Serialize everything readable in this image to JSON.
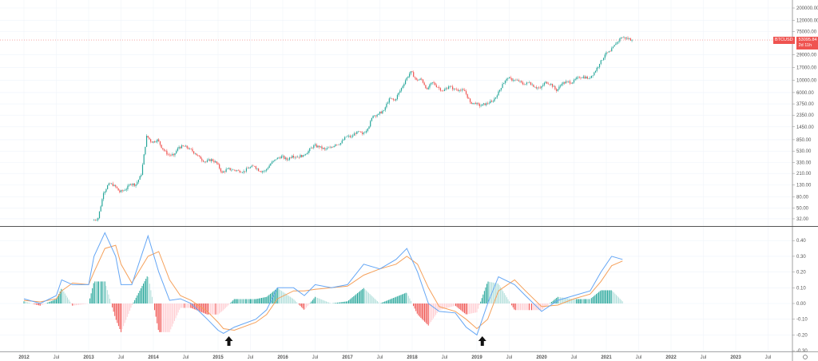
{
  "symbol_label": "BTCUSD",
  "last_price": "53095.84",
  "countdown": "2d 11h",
  "colors": {
    "up": "#26a69a",
    "down": "#ef5350",
    "macd": "#64a6f5",
    "signal": "#f5a05a",
    "hist_up_strong": "#26a69a",
    "hist_up_weak": "#b2dfdb",
    "hist_down_strong": "#ef5350",
    "hist_down_weak": "#ffcdd2",
    "price_label": "#ef5350"
  },
  "annotations": [
    {
      "type": "arrow-up",
      "date": "2015-03"
    },
    {
      "type": "arrow-up",
      "date": "2019-02"
    }
  ],
  "x_axis": {
    "ticks": [
      {
        "label": "2012",
        "date": "2012-01"
      },
      {
        "label": "Jul",
        "date": "2012-07"
      },
      {
        "label": "2013",
        "date": "2013-01"
      },
      {
        "label": "Jul",
        "date": "2013-07"
      },
      {
        "label": "2014",
        "date": "2014-01"
      },
      {
        "label": "Jul",
        "date": "2014-07"
      },
      {
        "label": "2015",
        "date": "2015-01"
      },
      {
        "label": "Jul",
        "date": "2015-07"
      },
      {
        "label": "2016",
        "date": "2016-01"
      },
      {
        "label": "Jul",
        "date": "2016-07"
      },
      {
        "label": "2017",
        "date": "2017-01"
      },
      {
        "label": "Jul",
        "date": "2017-07"
      },
      {
        "label": "2018",
        "date": "2018-01"
      },
      {
        "label": "Jul",
        "date": "2018-07"
      },
      {
        "label": "2019",
        "date": "2019-01"
      },
      {
        "label": "Jul",
        "date": "2019-07"
      },
      {
        "label": "2020",
        "date": "2020-01"
      },
      {
        "label": "Jul",
        "date": "2020-07"
      },
      {
        "label": "2021",
        "date": "2021-01"
      },
      {
        "label": "Jul",
        "date": "2021-07"
      },
      {
        "label": "2022",
        "date": "2022-01"
      },
      {
        "label": "Jul",
        "date": "2022-07"
      },
      {
        "label": "2023",
        "date": "2023-01"
      },
      {
        "label": "Jul",
        "date": "2023-07"
      }
    ]
  },
  "chart_data": [
    {
      "type": "candlestick",
      "scale": "log",
      "grid": true,
      "ylim": [
        30,
        200000
      ],
      "y_ticks": [
        "200000.00",
        "120000.00",
        "75000.00",
        "29000.00",
        "17000.00",
        "10000.00",
        "6000.00",
        "3750.00",
        "2350.00",
        "1450.00",
        "850.00",
        "530.00",
        "330.00",
        "210.00",
        "130.00",
        "80.00",
        "50.00",
        "32.00"
      ],
      "monthly_close": [
        [
          "2013-02",
          33
        ],
        [
          "2013-03",
          93
        ],
        [
          "2013-04",
          139
        ],
        [
          "2013-05",
          129
        ],
        [
          "2013-06",
          97
        ],
        [
          "2013-07",
          106
        ],
        [
          "2013-08",
          135
        ],
        [
          "2013-09",
          133
        ],
        [
          "2013-10",
          198
        ],
        [
          "2013-11",
          1000
        ],
        [
          "2013-12",
          754
        ],
        [
          "2014-01",
          860
        ],
        [
          "2014-02",
          573
        ],
        [
          "2014-03",
          457
        ],
        [
          "2014-04",
          448
        ],
        [
          "2014-05",
          627
        ],
        [
          "2014-06",
          640
        ],
        [
          "2014-07",
          586
        ],
        [
          "2014-08",
          480
        ],
        [
          "2014-09",
          387
        ],
        [
          "2014-10",
          338
        ],
        [
          "2014-11",
          378
        ],
        [
          "2014-12",
          320
        ],
        [
          "2015-01",
          217
        ],
        [
          "2015-02",
          254
        ],
        [
          "2015-03",
          244
        ],
        [
          "2015-04",
          236
        ],
        [
          "2015-05",
          230
        ],
        [
          "2015-06",
          263
        ],
        [
          "2015-07",
          284
        ],
        [
          "2015-08",
          230
        ],
        [
          "2015-09",
          236
        ],
        [
          "2015-10",
          314
        ],
        [
          "2015-11",
          377
        ],
        [
          "2015-12",
          430
        ],
        [
          "2016-01",
          369
        ],
        [
          "2016-02",
          437
        ],
        [
          "2016-03",
          416
        ],
        [
          "2016-04",
          448
        ],
        [
          "2016-05",
          531
        ],
        [
          "2016-06",
          673
        ],
        [
          "2016-07",
          624
        ],
        [
          "2016-08",
          573
        ],
        [
          "2016-09",
          609
        ],
        [
          "2016-10",
          698
        ],
        [
          "2016-11",
          742
        ],
        [
          "2016-12",
          963
        ],
        [
          "2017-01",
          970
        ],
        [
          "2017-02",
          1190
        ],
        [
          "2017-03",
          1080
        ],
        [
          "2017-04",
          1348
        ],
        [
          "2017-05",
          2300
        ],
        [
          "2017-06",
          2480
        ],
        [
          "2017-07",
          2875
        ],
        [
          "2017-08",
          4700
        ],
        [
          "2017-09",
          4340
        ],
        [
          "2017-10",
          6470
        ],
        [
          "2017-11",
          10000
        ],
        [
          "2017-12",
          14500
        ],
        [
          "2018-01",
          10200
        ],
        [
          "2018-02",
          10300
        ],
        [
          "2018-03",
          6900
        ],
        [
          "2018-04",
          9200
        ],
        [
          "2018-05",
          7500
        ],
        [
          "2018-06",
          6400
        ],
        [
          "2018-07",
          7730
        ],
        [
          "2018-08",
          7030
        ],
        [
          "2018-09",
          6630
        ],
        [
          "2018-10",
          6370
        ],
        [
          "2018-11",
          4040
        ],
        [
          "2018-12",
          3740
        ],
        [
          "2019-01",
          3460
        ],
        [
          "2019-02",
          3850
        ],
        [
          "2019-03",
          4100
        ],
        [
          "2019-04",
          5320
        ],
        [
          "2019-05",
          8570
        ],
        [
          "2019-06",
          10800
        ],
        [
          "2019-07",
          10080
        ],
        [
          "2019-08",
          9600
        ],
        [
          "2019-09",
          8300
        ],
        [
          "2019-10",
          9150
        ],
        [
          "2019-11",
          7550
        ],
        [
          "2019-12",
          7190
        ],
        [
          "2020-01",
          9350
        ],
        [
          "2020-02",
          8600
        ],
        [
          "2020-03",
          6440
        ],
        [
          "2020-04",
          8630
        ],
        [
          "2020-05",
          9450
        ],
        [
          "2020-06",
          9140
        ],
        [
          "2020-07",
          11350
        ],
        [
          "2020-08",
          11650
        ],
        [
          "2020-09",
          10780
        ],
        [
          "2020-10",
          13800
        ],
        [
          "2020-11",
          19700
        ],
        [
          "2020-12",
          29000
        ],
        [
          "2021-01",
          33100
        ],
        [
          "2021-02",
          45200
        ],
        [
          "2021-03",
          58800
        ],
        [
          "2021-04",
          57700
        ],
        [
          "2021-05",
          53095.84
        ]
      ]
    },
    {
      "type": "line",
      "indicator": "MACD",
      "grid": true,
      "ylim": [
        -0.3,
        0.45
      ],
      "y_ticks": [
        "0.40",
        "0.30",
        "0.20",
        "0.10",
        "0.00",
        "-0.10",
        "-0.20",
        "-0.30"
      ],
      "dates": [
        "2012-01",
        "2012-04",
        "2012-07",
        "2012-08",
        "2012-10",
        "2013-01",
        "2013-02",
        "2013-04",
        "2013-06",
        "2013-07",
        "2013-09",
        "2013-12",
        "2014-02",
        "2014-04",
        "2014-06",
        "2014-08",
        "2014-11",
        "2015-01",
        "2015-02",
        "2015-04",
        "2015-08",
        "2015-10",
        "2015-12",
        "2016-03",
        "2016-05",
        "2016-07",
        "2016-10",
        "2017-01",
        "2017-04",
        "2017-07",
        "2017-10",
        "2017-12",
        "2018-02",
        "2018-04",
        "2018-06",
        "2018-09",
        "2018-11",
        "2019-01",
        "2019-03",
        "2019-05",
        "2019-08",
        "2019-10",
        "2020-01",
        "2020-04",
        "2020-07",
        "2020-10",
        "2020-12",
        "2021-02",
        "2021-04"
      ],
      "macd": [
        0.03,
        0.0,
        0.05,
        0.15,
        0.12,
        0.12,
        0.3,
        0.45,
        0.3,
        0.12,
        0.12,
        0.43,
        0.2,
        0.02,
        0.03,
        0.0,
        -0.1,
        -0.17,
        -0.19,
        -0.15,
        -0.1,
        -0.04,
        0.1,
        0.1,
        0.05,
        0.12,
        0.1,
        0.12,
        0.25,
        0.22,
        0.28,
        0.35,
        0.2,
        0.0,
        -0.05,
        -0.06,
        -0.15,
        -0.2,
        0.0,
        0.17,
        0.12,
        0.05,
        -0.05,
        0.02,
        0.05,
        0.08,
        0.2,
        0.3,
        0.28
      ],
      "signal": [
        0.02,
        0.01,
        0.03,
        0.08,
        0.13,
        0.12,
        0.2,
        0.35,
        0.37,
        0.25,
        0.13,
        0.3,
        0.33,
        0.15,
        0.05,
        0.02,
        -0.05,
        -0.12,
        -0.16,
        -0.17,
        -0.12,
        -0.07,
        0.03,
        0.08,
        0.08,
        0.09,
        0.1,
        0.11,
        0.18,
        0.22,
        0.25,
        0.3,
        0.25,
        0.1,
        -0.02,
        -0.05,
        -0.1,
        -0.16,
        -0.1,
        0.08,
        0.15,
        0.08,
        -0.02,
        -0.01,
        0.03,
        0.06,
        0.14,
        0.24,
        0.27
      ]
    }
  ]
}
